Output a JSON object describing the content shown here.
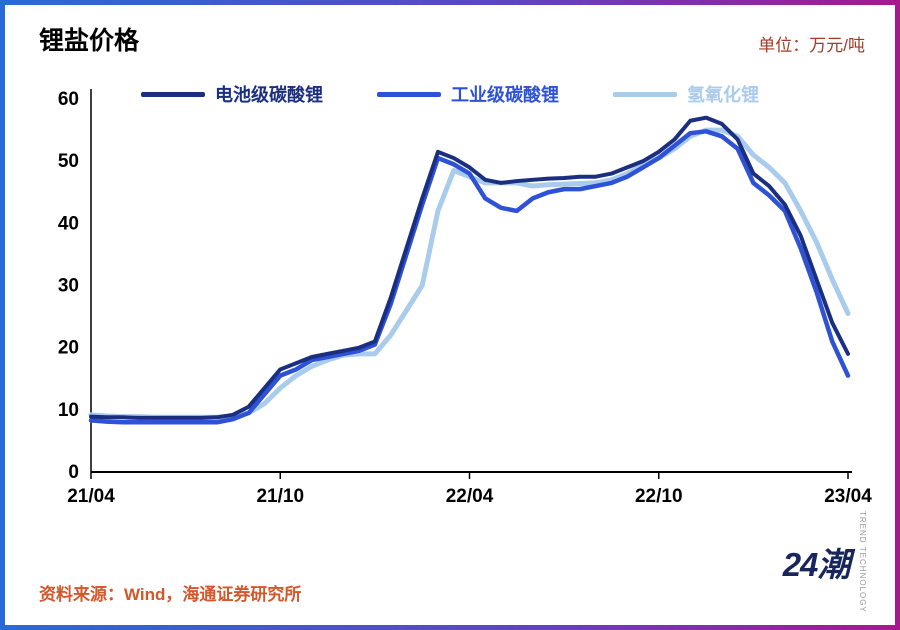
{
  "header": {
    "title": "锂盐价格",
    "unit": "单位：万元/吨"
  },
  "footer": {
    "source": "资料来源：Wind，海通证券研究所",
    "logo_text": "24潮",
    "logo_sub1": "TREND",
    "logo_sub2": "TECHNOLOGY"
  },
  "colors": {
    "frame_left": "#2a6ad6",
    "frame_right": "#a7188f",
    "unit_text": "#a33b24",
    "source_text": "#d4572b",
    "logo_navy": "#19265c",
    "axis": "#000000"
  },
  "chart_data": {
    "type": "line",
    "title": "锂盐价格",
    "unit_label": "单位：万元/吨",
    "x_tick_labels": [
      "21/04",
      "21/10",
      "22/04",
      "22/10",
      "23/04"
    ],
    "x_tick_months": [
      0,
      6,
      12,
      18,
      24
    ],
    "x_months_range": [
      0,
      24
    ],
    "x_step_months": 0.5,
    "y_ticks": [
      0,
      10,
      20,
      30,
      40,
      50,
      60
    ],
    "ylim": [
      0,
      60
    ],
    "grid": false,
    "legend_position": "top-center",
    "series": [
      {
        "name": "电池级碳酸锂",
        "color": "#1b2f80",
        "values": [
          8.9,
          8.8,
          8.8,
          8.7,
          8.7,
          8.7,
          8.7,
          8.7,
          8.8,
          9.2,
          10.5,
          13.5,
          16.5,
          17.5,
          18.5,
          19.0,
          19.5,
          20.0,
          21.0,
          28.0,
          36.0,
          44.0,
          51.5,
          50.5,
          49.0,
          47.0,
          46.5,
          46.8,
          47.0,
          47.2,
          47.3,
          47.5,
          47.5,
          48.0,
          49.0,
          50.0,
          51.5,
          53.5,
          56.5,
          57.0,
          56.0,
          53.5,
          48.0,
          46.0,
          43.0,
          38.0,
          31.0,
          24.0,
          19.0
        ]
      },
      {
        "name": "工业级碳酸锂",
        "color": "#2e52d6",
        "values": [
          8.3,
          8.1,
          8.0,
          8.0,
          8.0,
          8.0,
          8.0,
          8.0,
          8.0,
          8.5,
          9.5,
          12.5,
          15.5,
          16.5,
          18.0,
          18.5,
          19.0,
          19.5,
          20.5,
          27.0,
          35.0,
          43.0,
          50.5,
          49.5,
          48.0,
          44.0,
          42.5,
          42.0,
          44.0,
          45.0,
          45.5,
          45.5,
          46.0,
          46.5,
          47.5,
          49.0,
          50.5,
          52.5,
          54.5,
          54.8,
          54.0,
          52.0,
          46.5,
          44.5,
          42.0,
          36.0,
          29.0,
          21.0,
          15.5
        ]
      },
      {
        "name": "氢氧化锂",
        "color": "#a9cbec",
        "values": [
          9.2,
          9.0,
          8.9,
          8.9,
          8.8,
          8.8,
          8.8,
          8.8,
          8.8,
          9.0,
          9.5,
          11.0,
          13.5,
          15.5,
          17.0,
          18.0,
          18.8,
          19.0,
          19.0,
          22.0,
          26.0,
          30.0,
          42.0,
          48.5,
          47.5,
          46.5,
          46.5,
          46.5,
          46.0,
          46.2,
          46.3,
          46.4,
          46.5,
          47.0,
          48.0,
          49.5,
          50.5,
          52.0,
          54.0,
          55.0,
          55.0,
          54.0,
          51.0,
          49.0,
          46.5,
          42.0,
          37.0,
          31.0,
          25.5
        ]
      }
    ]
  }
}
